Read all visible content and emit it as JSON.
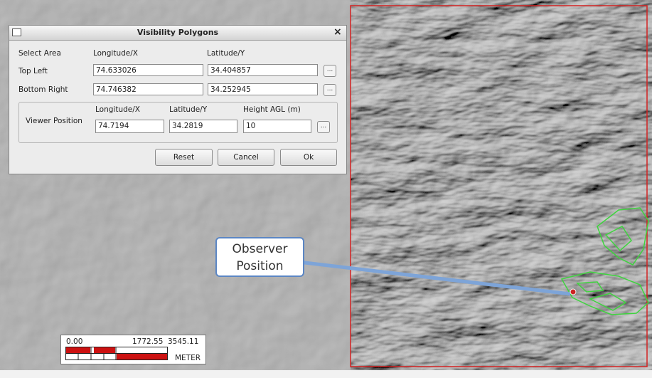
{
  "dialog": {
    "title": "Visibility Polygons",
    "close": "×",
    "select_area": {
      "label": "Select Area",
      "columns": [
        "Longitude/X",
        "Latitude/Y"
      ],
      "rows": [
        {
          "label": "Top Left",
          "values": [
            "74.633026",
            "34.404857"
          ],
          "button": "..."
        },
        {
          "label": "Bottom Right",
          "values": [
            "74.746382",
            "34.252945"
          ],
          "button": "..."
        }
      ]
    },
    "viewer": {
      "label": "Viewer Position",
      "columns": [
        "Longitude/X",
        "Latitude/Y",
        "Height AGL (m)"
      ],
      "values": [
        "74.7194",
        "34.2819",
        "10"
      ],
      "button": "..."
    },
    "buttons": [
      "Reset",
      "Cancel",
      "Ok"
    ]
  },
  "callout": {
    "lines": [
      "Observer",
      "Position"
    ]
  },
  "scale_bar": {
    "ticks": [
      "0.00",
      "1772.55",
      "3545.11"
    ],
    "unit": "METER"
  }
}
